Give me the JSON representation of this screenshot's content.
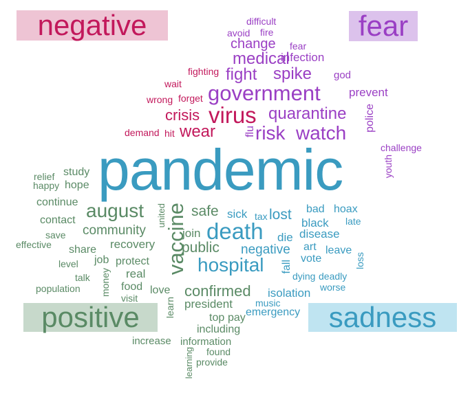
{
  "colors": {
    "negative": "#c2185b",
    "negative_bg": "#eec4d4",
    "fear": "#9a3fc4",
    "fear_bg": "#dcc2ec",
    "sadness": "#3a9bc0",
    "sadness_bg": "#bfe4f1",
    "positive": "#5a8a65",
    "positive_bg": "#c7d9cb"
  },
  "labels": {
    "negative": "negative",
    "fear": "fear",
    "positive": "positive",
    "sadness": "sadness"
  },
  "words": [
    {
      "id": "w-difficult",
      "text": "difficult",
      "sentiment": "fear",
      "weight": 1
    },
    {
      "id": "w-avoid",
      "text": "avoid",
      "sentiment": "fear",
      "weight": 1
    },
    {
      "id": "w-fire",
      "text": "fire",
      "sentiment": "fear",
      "weight": 1
    },
    {
      "id": "w-change",
      "text": "change",
      "sentiment": "fear",
      "weight": 3
    },
    {
      "id": "w-fear",
      "text": "fear",
      "sentiment": "fear",
      "weight": 1
    },
    {
      "id": "w-medical",
      "text": "medical",
      "sentiment": "fear",
      "weight": 4
    },
    {
      "id": "w-infection",
      "text": "infection",
      "sentiment": "fear",
      "weight": 2
    },
    {
      "id": "w-fighting",
      "text": "fighting",
      "sentiment": "negative",
      "weight": 1
    },
    {
      "id": "w-fight",
      "text": "fight",
      "sentiment": "fear",
      "weight": 4
    },
    {
      "id": "w-spike",
      "text": "spike",
      "sentiment": "fear",
      "weight": 4
    },
    {
      "id": "w-god",
      "text": "god",
      "sentiment": "fear",
      "weight": 1
    },
    {
      "id": "w-wait",
      "text": "wait",
      "sentiment": "negative",
      "weight": 1
    },
    {
      "id": "w-government",
      "text": "government",
      "sentiment": "fear",
      "weight": 6
    },
    {
      "id": "w-prevent",
      "text": "prevent",
      "sentiment": "fear",
      "weight": 2
    },
    {
      "id": "w-wrong",
      "text": "wrong",
      "sentiment": "negative",
      "weight": 1
    },
    {
      "id": "w-forget",
      "text": "forget",
      "sentiment": "negative",
      "weight": 1
    },
    {
      "id": "w-crisis",
      "text": "crisis",
      "sentiment": "negative",
      "weight": 4
    },
    {
      "id": "w-virus",
      "text": "virus",
      "sentiment": "negative",
      "weight": 6
    },
    {
      "id": "w-quarantine",
      "text": "quarantine",
      "sentiment": "fear",
      "weight": 4
    },
    {
      "id": "w-police",
      "text": "police",
      "sentiment": "fear",
      "weight": 2
    },
    {
      "id": "w-demand",
      "text": "demand",
      "sentiment": "negative",
      "weight": 1
    },
    {
      "id": "w-hit",
      "text": "hit",
      "sentiment": "negative",
      "weight": 1
    },
    {
      "id": "w-wear",
      "text": "wear",
      "sentiment": "negative",
      "weight": 4
    },
    {
      "id": "w-flu",
      "text": "flu",
      "sentiment": "fear",
      "weight": 1
    },
    {
      "id": "w-risk",
      "text": "risk",
      "sentiment": "fear",
      "weight": 5
    },
    {
      "id": "w-watch",
      "text": "watch",
      "sentiment": "fear",
      "weight": 5
    },
    {
      "id": "w-challenge",
      "text": "challenge",
      "sentiment": "fear",
      "weight": 1
    },
    {
      "id": "w-youth",
      "text": "youth",
      "sentiment": "fear",
      "weight": 1
    },
    {
      "id": "w-pandemic",
      "text": "pandemic",
      "sentiment": "sadness",
      "weight": 10
    },
    {
      "id": "w-relief",
      "text": "relief",
      "sentiment": "positive",
      "weight": 1
    },
    {
      "id": "w-study",
      "text": "study",
      "sentiment": "positive",
      "weight": 2
    },
    {
      "id": "w-happy",
      "text": "happy",
      "sentiment": "positive",
      "weight": 1
    },
    {
      "id": "w-hope",
      "text": "hope",
      "sentiment": "positive",
      "weight": 2
    },
    {
      "id": "w-continue",
      "text": "continue",
      "sentiment": "positive",
      "weight": 2
    },
    {
      "id": "w-august",
      "text": "august",
      "sentiment": "positive",
      "weight": 5
    },
    {
      "id": "w-united",
      "text": "united",
      "sentiment": "positive",
      "weight": 1
    },
    {
      "id": "w-vaccine",
      "text": "vaccine",
      "sentiment": "positive",
      "weight": 5
    },
    {
      "id": "w-safe",
      "text": "safe",
      "sentiment": "positive",
      "weight": 3
    },
    {
      "id": "w-sick",
      "text": "sick",
      "sentiment": "sadness",
      "weight": 2
    },
    {
      "id": "w-tax",
      "text": "tax",
      "sentiment": "sadness",
      "weight": 1
    },
    {
      "id": "w-lost",
      "text": "lost",
      "sentiment": "sadness",
      "weight": 3
    },
    {
      "id": "w-bad",
      "text": "bad",
      "sentiment": "sadness",
      "weight": 2
    },
    {
      "id": "w-hoax",
      "text": "hoax",
      "sentiment": "sadness",
      "weight": 2
    },
    {
      "id": "w-contact",
      "text": "contact",
      "sentiment": "positive",
      "weight": 2
    },
    {
      "id": "w-community",
      "text": "community",
      "sentiment": "positive",
      "weight": 3
    },
    {
      "id": "w-join",
      "text": "join",
      "sentiment": "positive",
      "weight": 2
    },
    {
      "id": "w-death",
      "text": "death",
      "sentiment": "sadness",
      "weight": 6
    },
    {
      "id": "w-black",
      "text": "black",
      "sentiment": "sadness",
      "weight": 2
    },
    {
      "id": "w-late",
      "text": "late",
      "sentiment": "sadness",
      "weight": 1
    },
    {
      "id": "w-save",
      "text": "save",
      "sentiment": "positive",
      "weight": 1
    },
    {
      "id": "w-die",
      "text": "die",
      "sentiment": "sadness",
      "weight": 2
    },
    {
      "id": "w-disease",
      "text": "disease",
      "sentiment": "sadness",
      "weight": 2
    },
    {
      "id": "w-effective",
      "text": "effective",
      "sentiment": "positive",
      "weight": 1
    },
    {
      "id": "w-recovery",
      "text": "recovery",
      "sentiment": "positive",
      "weight": 2
    },
    {
      "id": "w-public",
      "text": "public",
      "sentiment": "positive",
      "weight": 3
    },
    {
      "id": "w-negative",
      "text": "negative",
      "sentiment": "sadness",
      "weight": 3
    },
    {
      "id": "w-art",
      "text": "art",
      "sentiment": "sadness",
      "weight": 1
    },
    {
      "id": "w-share",
      "text": "share",
      "sentiment": "positive",
      "weight": 2
    },
    {
      "id": "w-leave",
      "text": "leave",
      "sentiment": "sadness",
      "weight": 2
    },
    {
      "id": "w-job",
      "text": "job",
      "sentiment": "positive",
      "weight": 2
    },
    {
      "id": "w-protect",
      "text": "protect",
      "sentiment": "positive",
      "weight": 2
    },
    {
      "id": "w-hospital",
      "text": "hospital",
      "sentiment": "sadness",
      "weight": 6
    },
    {
      "id": "w-vote",
      "text": "vote",
      "sentiment": "sadness",
      "weight": 2
    },
    {
      "id": "w-level",
      "text": "level",
      "sentiment": "positive",
      "weight": 1
    },
    {
      "id": "w-fall",
      "text": "fall",
      "sentiment": "sadness",
      "weight": 2
    },
    {
      "id": "w-loss",
      "text": "loss",
      "sentiment": "sadness",
      "weight": 1
    },
    {
      "id": "w-real",
      "text": "real",
      "sentiment": "positive",
      "weight": 2
    },
    {
      "id": "w-dying",
      "text": "dying",
      "sentiment": "sadness",
      "weight": 1
    },
    {
      "id": "w-deadly",
      "text": "deadly",
      "sentiment": "sadness",
      "weight": 1
    },
    {
      "id": "w-talk",
      "text": "talk",
      "sentiment": "positive",
      "weight": 1
    },
    {
      "id": "w-money",
      "text": "money",
      "sentiment": "positive",
      "weight": 1
    },
    {
      "id": "w-population",
      "text": "population",
      "sentiment": "positive",
      "weight": 1
    },
    {
      "id": "w-food",
      "text": "food",
      "sentiment": "positive",
      "weight": 2
    },
    {
      "id": "w-love",
      "text": "love",
      "sentiment": "positive",
      "weight": 2
    },
    {
      "id": "w-confirmed",
      "text": "confirmed",
      "sentiment": "positive",
      "weight": 4
    },
    {
      "id": "w-isolation",
      "text": "isolation",
      "sentiment": "sadness",
      "weight": 2
    },
    {
      "id": "w-worse",
      "text": "worse",
      "sentiment": "sadness",
      "weight": 1
    },
    {
      "id": "w-visit",
      "text": "visit",
      "sentiment": "positive",
      "weight": 1
    },
    {
      "id": "w-learn",
      "text": "learn",
      "sentiment": "positive",
      "weight": 1
    },
    {
      "id": "w-president",
      "text": "president",
      "sentiment": "positive",
      "weight": 3
    },
    {
      "id": "w-music",
      "text": "music",
      "sentiment": "sadness",
      "weight": 1
    },
    {
      "id": "w-emergency",
      "text": "emergency",
      "sentiment": "sadness",
      "weight": 2
    },
    {
      "id": "w-top",
      "text": "top",
      "sentiment": "positive",
      "weight": 2
    },
    {
      "id": "w-pay",
      "text": "pay",
      "sentiment": "positive",
      "weight": 2
    },
    {
      "id": "w-including",
      "text": "including",
      "sentiment": "positive",
      "weight": 2
    },
    {
      "id": "w-increase",
      "text": "increase",
      "sentiment": "positive",
      "weight": 2
    },
    {
      "id": "w-information",
      "text": "information",
      "sentiment": "positive",
      "weight": 2
    },
    {
      "id": "w-found",
      "text": "found",
      "sentiment": "positive",
      "weight": 1
    },
    {
      "id": "w-learning",
      "text": "learning",
      "sentiment": "positive",
      "weight": 1
    },
    {
      "id": "w-provide",
      "text": "provide",
      "sentiment": "positive",
      "weight": 1
    }
  ]
}
